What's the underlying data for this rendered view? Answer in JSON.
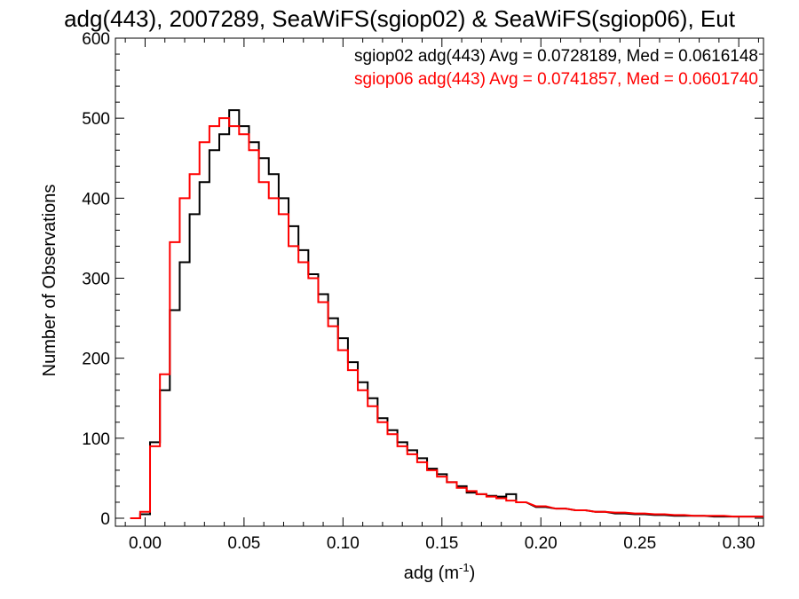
{
  "chart_data": {
    "type": "line",
    "title": "adg(443), 2007289, SeaWiFS(sgiop02) & SeaWiFS(sgiop06), Eut",
    "xlabel": "adg (m",
    "xlabel_sup": "-1",
    "xlabel_end": ")",
    "ylabel": "Number of Observations",
    "xlim": [
      -0.015,
      0.3125
    ],
    "ylim": [
      -10,
      600
    ],
    "xticks": [
      0.0,
      0.05,
      0.1,
      0.15,
      0.2,
      0.25,
      0.3
    ],
    "xtick_labels": [
      "0.00",
      "0.05",
      "0.10",
      "0.15",
      "0.20",
      "0.25",
      "0.30"
    ],
    "yticks": [
      0,
      100,
      200,
      300,
      400,
      500,
      600
    ],
    "ytick_labels": [
      "0",
      "100",
      "200",
      "300",
      "400",
      "500",
      "600"
    ],
    "legend_placement": "top-right",
    "series": [
      {
        "name": "sgiop02",
        "legend": "sgiop02 adg(443) Avg = 0.0728189, Med = 0.0616148",
        "color": "#000000",
        "x": [
          -0.005,
          0.0,
          0.005,
          0.01,
          0.015,
          0.02,
          0.025,
          0.03,
          0.035,
          0.04,
          0.045,
          0.05,
          0.055,
          0.06,
          0.065,
          0.07,
          0.075,
          0.08,
          0.085,
          0.09,
          0.095,
          0.1,
          0.105,
          0.11,
          0.115,
          0.12,
          0.125,
          0.13,
          0.135,
          0.14,
          0.145,
          0.15,
          0.155,
          0.16,
          0.165,
          0.17,
          0.175,
          0.18,
          0.185,
          0.19,
          0.2,
          0.21,
          0.22,
          0.23,
          0.24,
          0.25,
          0.26,
          0.27,
          0.28,
          0.29,
          0.3,
          0.31
        ],
        "y": [
          0,
          5,
          95,
          160,
          260,
          320,
          380,
          420,
          460,
          480,
          510,
          490,
          470,
          450,
          430,
          400,
          365,
          335,
          305,
          280,
          250,
          225,
          195,
          170,
          150,
          125,
          110,
          95,
          85,
          75,
          62,
          55,
          45,
          40,
          32,
          30,
          28,
          27,
          30,
          20,
          14,
          12,
          10,
          8,
          6,
          5,
          4,
          3,
          3,
          2,
          2,
          2
        ]
      },
      {
        "name": "sgiop06",
        "legend": "sgiop06 adg(443) Avg = 0.0741857, Med = 0.0601740",
        "color": "#ff0000",
        "x": [
          -0.005,
          0.0,
          0.005,
          0.01,
          0.015,
          0.02,
          0.025,
          0.03,
          0.035,
          0.04,
          0.045,
          0.05,
          0.055,
          0.06,
          0.065,
          0.07,
          0.075,
          0.08,
          0.085,
          0.09,
          0.095,
          0.1,
          0.105,
          0.11,
          0.115,
          0.12,
          0.125,
          0.13,
          0.135,
          0.14,
          0.145,
          0.15,
          0.155,
          0.16,
          0.165,
          0.17,
          0.175,
          0.18,
          0.185,
          0.19,
          0.2,
          0.21,
          0.22,
          0.23,
          0.24,
          0.25,
          0.26,
          0.27,
          0.28,
          0.29,
          0.3,
          0.31
        ],
        "y": [
          0,
          8,
          90,
          180,
          345,
          400,
          430,
          470,
          490,
          500,
          490,
          480,
          460,
          420,
          400,
          380,
          340,
          320,
          300,
          270,
          240,
          210,
          185,
          160,
          140,
          120,
          105,
          90,
          80,
          70,
          60,
          52,
          45,
          38,
          34,
          30,
          27,
          25,
          22,
          20,
          15,
          12,
          10,
          8,
          7,
          6,
          5,
          4,
          3,
          3,
          2,
          2
        ]
      }
    ]
  }
}
